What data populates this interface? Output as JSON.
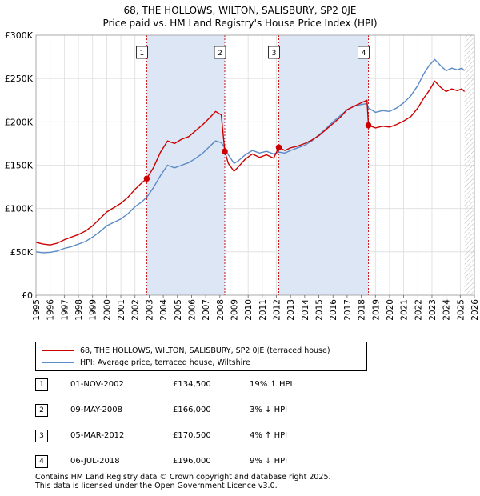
{
  "title_line1": "68, THE HOLLOWS, WILTON, SALISBURY, SP2 0JE",
  "title_line2": "Price paid vs. HM Land Registry's House Price Index (HPI)",
  "chart_data": {
    "type": "line",
    "y_ticks": [
      "£0",
      "£50K",
      "£100K",
      "£150K",
      "£200K",
      "£250K",
      "£300K"
    ],
    "ylim": [
      0,
      300000
    ],
    "xlim": [
      1995,
      2026
    ],
    "x_ticks": [
      "1995",
      "1996",
      "1997",
      "1998",
      "1999",
      "2000",
      "2001",
      "2002",
      "2003",
      "2004",
      "2005",
      "2006",
      "2007",
      "2008",
      "2009",
      "2010",
      "2011",
      "2012",
      "2013",
      "2014",
      "2015",
      "2016",
      "2017",
      "2018",
      "2019",
      "2020",
      "2021",
      "2022",
      "2023",
      "2024",
      "2025",
      "2026"
    ],
    "grid": true,
    "colors": {
      "property": "#cc0000",
      "hpi": "#5b8ac6",
      "shade": "#dde6f5",
      "marker_line": "#cc0000"
    },
    "series": [
      {
        "name": "68, THE HOLLOWS, WILTON, SALISBURY, SP2 0JE (terraced house)",
        "x": [
          1995,
          1995.5,
          1996,
          1996.5,
          1997,
          1997.5,
          1998,
          1998.5,
          1999,
          1999.5,
          2000,
          2000.5,
          2001,
          2001.5,
          2002,
          2002.5,
          2002.83,
          2003.3,
          2003.8,
          2004.3,
          2004.8,
          2005.3,
          2005.8,
          2006.3,
          2006.8,
          2007.3,
          2007.7,
          2008.1,
          2008.35,
          2008.6,
          2009.0,
          2009.3,
          2009.8,
          2010.3,
          2010.8,
          2011.3,
          2011.8,
          2012.17,
          2012.6,
          2013.0,
          2013.5,
          2014.0,
          2014.5,
          2015.0,
          2015.5,
          2016.0,
          2016.5,
          2017.0,
          2017.5,
          2018.0,
          2018.4,
          2018.51,
          2019.0,
          2019.5,
          2020.0,
          2020.5,
          2021.0,
          2021.5,
          2022.0,
          2022.4,
          2022.8,
          2023.2,
          2023.6,
          2024.0,
          2024.4,
          2024.8,
          2025.1,
          2025.3
        ],
        "values": [
          61000,
          59000,
          58000,
          60000,
          64000,
          67000,
          70000,
          74000,
          80000,
          88000,
          96000,
          101000,
          106000,
          113000,
          122000,
          130000,
          134500,
          147000,
          165000,
          178000,
          175000,
          180000,
          183000,
          190000,
          197000,
          205000,
          212000,
          208000,
          166000,
          152000,
          143000,
          148000,
          157000,
          163000,
          159000,
          162000,
          158000,
          170500,
          167000,
          170000,
          172000,
          175000,
          179000,
          184000,
          191000,
          198000,
          205000,
          214000,
          218000,
          222000,
          225000,
          196000,
          193000,
          195000,
          194000,
          197000,
          201000,
          206000,
          216000,
          227000,
          236000,
          247000,
          240000,
          235000,
          238000,
          236000,
          238000,
          235000
        ]
      },
      {
        "name": "HPI: Average price, terraced house, Wiltshire",
        "x": [
          1995,
          1995.5,
          1996,
          1996.5,
          1997,
          1997.5,
          1998,
          1998.5,
          1999,
          1999.5,
          2000,
          2000.5,
          2001,
          2001.5,
          2002,
          2002.5,
          2002.83,
          2003.3,
          2003.8,
          2004.3,
          2004.8,
          2005.3,
          2005.8,
          2006.3,
          2006.8,
          2007.3,
          2007.7,
          2008.1,
          2008.35,
          2008.6,
          2009.0,
          2009.3,
          2009.8,
          2010.3,
          2010.8,
          2011.3,
          2011.8,
          2012.17,
          2012.6,
          2013.0,
          2013.5,
          2014.0,
          2014.5,
          2015.0,
          2015.5,
          2016.0,
          2016.5,
          2017.0,
          2017.5,
          2018.0,
          2018.4,
          2018.51,
          2019.0,
          2019.5,
          2020.0,
          2020.5,
          2021.0,
          2021.5,
          2022.0,
          2022.4,
          2022.8,
          2023.2,
          2023.6,
          2024.0,
          2024.4,
          2024.8,
          2025.1,
          2025.3
        ],
        "values": [
          50000,
          49000,
          49500,
          51000,
          54000,
          56000,
          59000,
          62000,
          67000,
          73000,
          80000,
          84000,
          88000,
          94000,
          102000,
          108000,
          113000,
          124000,
          138000,
          150000,
          147000,
          150000,
          153000,
          158000,
          164000,
          172000,
          178000,
          176000,
          170000,
          162000,
          152000,
          155000,
          162000,
          167000,
          164000,
          166000,
          163000,
          165000,
          164000,
          167000,
          170000,
          173000,
          178000,
          185000,
          192000,
          200000,
          207000,
          214000,
          218000,
          220000,
          221000,
          216000,
          211000,
          213000,
          212000,
          216000,
          222000,
          230000,
          242000,
          255000,
          265000,
          272000,
          265000,
          259000,
          262000,
          260000,
          262000,
          259000
        ]
      }
    ],
    "sales": [
      {
        "label": "1",
        "x": 2002.83,
        "value": 134500
      },
      {
        "label": "2",
        "x": 2008.35,
        "value": 166000
      },
      {
        "label": "3",
        "x": 2012.17,
        "value": 170500
      },
      {
        "label": "4",
        "x": 2018.51,
        "value": 196000
      }
    ],
    "shaded_ranges": [
      [
        2002.83,
        2008.35
      ],
      [
        2012.17,
        2018.51
      ]
    ],
    "future_hatch_from": 2025.3
  },
  "legend": {
    "property": "68, THE HOLLOWS, WILTON, SALISBURY, SP2 0JE (terraced house)",
    "hpi": "HPI: Average price, terraced house, Wiltshire"
  },
  "sales_table": [
    {
      "num": "1",
      "date": "01-NOV-2002",
      "price": "£134,500",
      "hpi": "19% ↑ HPI"
    },
    {
      "num": "2",
      "date": "09-MAY-2008",
      "price": "£166,000",
      "hpi": "3% ↓ HPI"
    },
    {
      "num": "3",
      "date": "05-MAR-2012",
      "price": "£170,500",
      "hpi": "4% ↑ HPI"
    },
    {
      "num": "4",
      "date": "06-JUL-2018",
      "price": "£196,000",
      "hpi": "9% ↓ HPI"
    }
  ],
  "footer_line1": "Contains HM Land Registry data © Crown copyright and database right 2025.",
  "footer_line2": "This data is licensed under the Open Government Licence v3.0."
}
